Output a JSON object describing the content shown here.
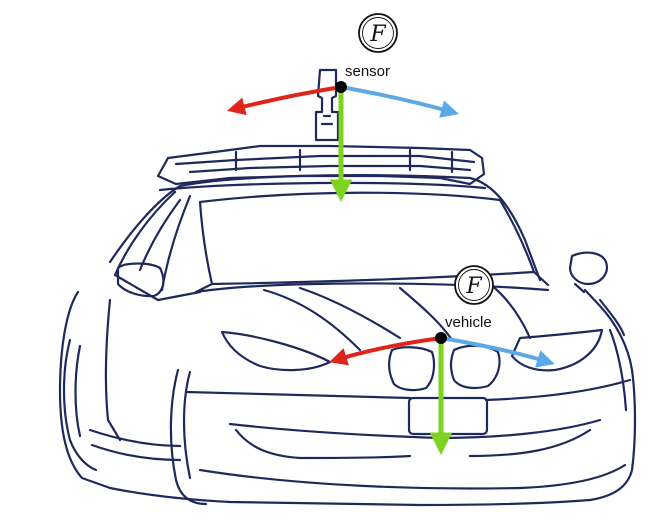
{
  "frames": {
    "sensor": {
      "label": "sensor",
      "badge_letter": "F"
    },
    "vehicle": {
      "label": "vehicle",
      "badge_letter": "F"
    }
  },
  "axis_colors": {
    "red": "#e0241b",
    "blue": "#5ba9e6",
    "green": "#7ed321"
  },
  "outline_color": "#1e2a5c",
  "origin_color": "#000000"
}
